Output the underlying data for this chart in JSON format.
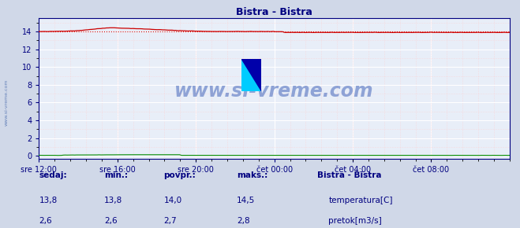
{
  "title": "Bistra - Bistra",
  "title_color": "#000080",
  "bg_color": "#d0d8e8",
  "plot_bg_color": "#e8eef8",
  "grid_color_major": "#ffffff",
  "grid_color_minor": "#ffcccc",
  "x_tick_labels": [
    "sre 12:00",
    "sre 16:00",
    "sre 20:00",
    "čet 00:00",
    "čet 04:00",
    "čet 08:00"
  ],
  "x_tick_positions": [
    0.0,
    0.1667,
    0.3333,
    0.5,
    0.6667,
    0.8333
  ],
  "y_ticks": [
    0,
    2,
    4,
    6,
    8,
    10,
    12,
    14
  ],
  "ylim": [
    -0.3,
    15.5
  ],
  "temp_color": "#cc0000",
  "flow_color": "#008800",
  "watermark_text": "www.si-vreme.com",
  "watermark_color": "#4466bb",
  "sidebar_text": "www.si-vreme.com",
  "sidebar_color": "#4466aa",
  "legend_title": "Bistra - Bistra",
  "legend_color": "#000080",
  "stats_headers": [
    "sedaj:",
    "min.:",
    "povpr.:",
    "maks.:"
  ],
  "stats_temp": [
    "13,8",
    "13,8",
    "14,0",
    "14,5"
  ],
  "stats_flow": [
    "2,6",
    "2,6",
    "2,7",
    "2,8"
  ],
  "label_temp": "temperatura[C]",
  "label_flow": "pretok[m3/s]",
  "text_color": "#000080",
  "avg_temp": 14.0,
  "n_points": 252
}
